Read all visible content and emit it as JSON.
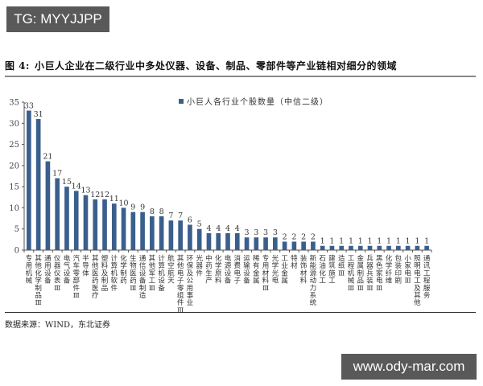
{
  "watermarks": {
    "top": "TG: MYYJJPP",
    "bottom": "www.ody-mar.com"
  },
  "figure": {
    "number": "图 4:",
    "title": "小巨人企业在二级行业中多处仪器、设备、制品、零部件等产业链相对细分的领域"
  },
  "source": "数据来源：WIND，东北证券",
  "chart_data": {
    "type": "bar",
    "title": "小巨人企业在二级行业中多处仪器、设备、制品、零部件等产业链相对细分的领域",
    "xlabel": "",
    "ylabel": "",
    "ylim": [
      0,
      35
    ],
    "yticks": [
      0,
      5,
      10,
      15,
      20,
      25,
      30,
      35
    ],
    "grid": false,
    "legend_position": "top",
    "bar_color": "#3a5f8c",
    "series": [
      {
        "name": "小巨人各行业个股数量（中信二级）",
        "values": [
          33,
          31,
          21,
          17,
          15,
          14,
          13,
          12,
          12,
          11,
          10,
          9,
          9,
          8,
          8,
          7,
          7,
          6,
          5,
          4,
          4,
          4,
          4,
          3,
          3,
          3,
          3,
          2,
          2,
          2,
          2,
          1,
          1,
          1,
          1,
          1,
          1,
          1,
          1,
          1,
          1,
          1,
          1
        ]
      }
    ],
    "categories": [
      "专用机械",
      "其他化学制品Ⅲ",
      "通用设备",
      "仪器仪表Ⅲ",
      "电气设备",
      "汽车零部件Ⅲ",
      "半导体",
      "其他医药医疗",
      "塑料及制品",
      "计算机软件",
      "化学制药",
      "生物医药Ⅲ",
      "通信设备制造",
      "其他军工Ⅲ",
      "计算机设备",
      "航空航天",
      "其他电子零组件Ⅲ",
      "环保及公用事业",
      "光器件",
      "中药生产",
      "化学原料",
      "电源设备",
      "消费电子",
      "运输设备",
      "稀有金属",
      "专用材料Ⅲ",
      "光学光电",
      "工业金属",
      "特材",
      "装饰材料",
      "新能源动力系统",
      "石油化工",
      "建筑施工",
      "造纸Ⅲ",
      "工程机械Ⅲ",
      "金属制品Ⅲ",
      "兵器兵装Ⅲ",
      "黑色家电Ⅲ",
      "化学纤维",
      "包装印刷",
      "小家电Ⅲ",
      "照明电工及其他",
      "通讯工程服务"
    ]
  }
}
